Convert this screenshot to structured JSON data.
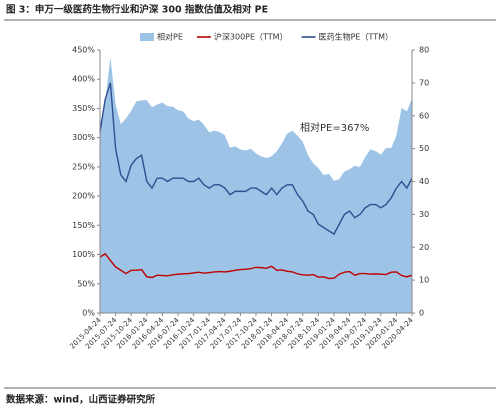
{
  "chart_data": {
    "type": "line",
    "title": "图 3：申万一级医药生物行业和沪深 300 指数估值及相对 PE",
    "source": "数据来源：wind，山西证券研究所",
    "annotation": "相对PE=367%",
    "categories": [
      "2015-04-24",
      null,
      null,
      "2015-07-24",
      null,
      null,
      "2015-10-24",
      null,
      null,
      "2016-01-24",
      null,
      null,
      "2016-04-24",
      null,
      null,
      "2016-07-24",
      null,
      null,
      "2016-10-24",
      null,
      null,
      "2017-01-24",
      null,
      null,
      "2017-04-24",
      null,
      null,
      "2017-07-24",
      null,
      null,
      "2017-10-24",
      null,
      null,
      "2018-01-24",
      null,
      null,
      "2018-04-24",
      null,
      null,
      "2018-07-24",
      null,
      null,
      "2018-10-24",
      null,
      null,
      "2019-01-24",
      null,
      null,
      "2019-04-24",
      null,
      null,
      "2019-07-24",
      null,
      null,
      "2019-10-24",
      null,
      null,
      "2020-01-24",
      null,
      null,
      "2020-04-24"
    ],
    "series": [
      {
        "name": "相对PE",
        "color": "#9dc3e6",
        "kind": "area",
        "axis": "y",
        "values": [
          324,
          361,
          437,
          357,
          323,
          333,
          346,
          362,
          364,
          364,
          352,
          357,
          360,
          354,
          353,
          347,
          345,
          333,
          328,
          331,
          322,
          309,
          312,
          310,
          304,
          283,
          285,
          280,
          278,
          281,
          273,
          268,
          265,
          268,
          277,
          290,
          307,
          312,
          303,
          293,
          270,
          256,
          248,
          236,
          238,
          226,
          229,
          242,
          246,
          252,
          250,
          267,
          280,
          277,
          271,
          282,
          282,
          304,
          351,
          345,
          367
        ]
      },
      {
        "name": "沪深300PE（TTM）",
        "color": "#c00000",
        "kind": "line",
        "axis": "y2",
        "values": [
          17,
          18,
          16,
          14,
          13,
          12,
          13,
          13,
          13.2,
          11,
          10.8,
          11.5,
          11.4,
          11.3,
          11.6,
          11.8,
          11.9,
          12,
          12.2,
          12.4,
          12.1,
          12.3,
          12.5,
          12.6,
          12.5,
          12.7,
          13,
          13.2,
          13.3,
          13.5,
          13.9,
          13.8,
          13.6,
          14.2,
          13,
          13.1,
          12.7,
          12.5,
          11.9,
          11.6,
          11.5,
          11.7,
          10.9,
          11,
          10.5,
          10.6,
          11.8,
          12.4,
          12.6,
          11.5,
          12,
          12,
          11.8,
          11.9,
          11.8,
          11.7,
          12.4,
          12.5,
          11.4,
          11,
          11.5
        ]
      },
      {
        "name": "医药生物PE（TTM）",
        "color": "#2f4f8f",
        "kind": "line",
        "axis": "y2",
        "values": [
          55,
          65,
          70,
          50,
          42,
          40,
          45,
          47,
          48,
          40,
          38,
          41,
          41,
          40,
          41,
          41,
          41,
          40,
          40,
          41,
          39,
          38,
          39,
          39,
          38,
          36,
          37,
          37,
          37,
          38,
          38,
          37,
          36,
          38,
          36,
          38,
          39,
          39,
          36,
          34,
          31,
          30,
          27,
          26,
          25,
          24,
          27,
          30,
          31,
          29,
          30,
          32,
          33,
          33,
          32,
          33,
          35,
          38,
          40,
          38,
          41
        ]
      }
    ],
    "ylim": [
      0,
      450
    ],
    "yticks": [
      {
        "value": 0,
        "label": "0%"
      },
      {
        "value": 50,
        "label": "50%"
      },
      {
        "value": 100,
        "label": "100%"
      },
      {
        "value": 150,
        "label": "150%"
      },
      {
        "value": 200,
        "label": "200%"
      },
      {
        "value": 250,
        "label": "250%"
      },
      {
        "value": 300,
        "label": "300%"
      },
      {
        "value": 350,
        "label": "350%"
      },
      {
        "value": 400,
        "label": "400%"
      },
      {
        "value": 450,
        "label": "450%"
      }
    ],
    "y2lim": [
      0,
      80
    ],
    "y2ticks": [
      0,
      10,
      20,
      30,
      40,
      50,
      60,
      70,
      80
    ],
    "legend": "top",
    "grid": false
  }
}
